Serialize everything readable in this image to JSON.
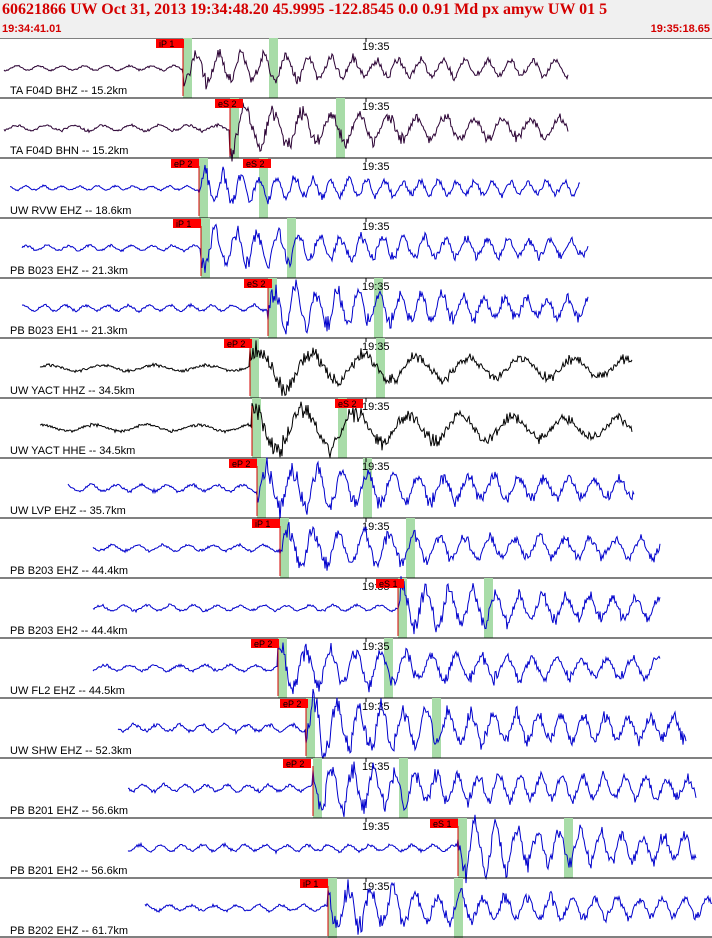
{
  "header": {
    "title": "60621866 UW Oct 31, 2013 19:34:48.20   45.9995 -122.8545  0.0 0.91 Md px amyw UW 01   5",
    "time_start": "19:34:41.01",
    "time_end": "19:35:18.65"
  },
  "time_marker_label": "19:35",
  "colors": {
    "pick_box": "#ff0000",
    "phase_band": "#a8dca8",
    "black_trace": "#000000",
    "blue_trace": "#0000cc",
    "purple_trace": "#2a0033",
    "header_text": "#d40000"
  },
  "channels": [
    {
      "label": "TA F04D BHZ -- 15.2km",
      "color": "purple",
      "start": 4,
      "end": 568,
      "onset": 183,
      "amp": 14,
      "freq": 0.28,
      "pick": "iP 1",
      "pickx": 156,
      "s_pick": "",
      "s_pickx": 0
    },
    {
      "label": "TA F04D BHN -- 15.2km",
      "color": "purple",
      "start": 4,
      "end": 568,
      "onset": 230,
      "amp": 18,
      "freq": 0.22,
      "pick": "eS 2",
      "pickx": 215,
      "s_pick": "",
      "s_pickx": 0
    },
    {
      "label": "UW RVW EHZ -- 18.6km",
      "color": "blue",
      "start": 10,
      "end": 580,
      "onset": 199,
      "amp": 12,
      "freq": 0.35,
      "pick": "eP 2",
      "pickx": 171,
      "s_pick": "eS 2",
      "s_pickx": 243
    },
    {
      "label": "PB B023 EHZ -- 21.3km",
      "color": "blue",
      "start": 22,
      "end": 588,
      "onset": 201,
      "amp": 16,
      "freq": 0.3,
      "pick": "iP 1",
      "pickx": 173,
      "s_pick": "",
      "s_pickx": 0
    },
    {
      "label": "PB B023 EH1 -- 21.3km",
      "color": "blue",
      "start": 22,
      "end": 588,
      "onset": 268,
      "amp": 18,
      "freq": 0.3,
      "pick": "eS 2",
      "pickx": 244,
      "s_pick": "",
      "s_pickx": 0
    },
    {
      "label": "UW YACT HHZ -- 34.5km",
      "color": "black",
      "start": 40,
      "end": 632,
      "onset": 250,
      "amp": 18,
      "freq": 0.12,
      "pick": "eP 2",
      "pickx": 224,
      "s_pick": "",
      "s_pickx": 0
    },
    {
      "label": "UW YACT HHE -- 34.5km",
      "color": "black",
      "start": 40,
      "end": 632,
      "onset": 252,
      "amp": 20,
      "freq": 0.12,
      "pick": "eS 2",
      "pickx": 335,
      "s_pick": "",
      "s_pickx": 0
    },
    {
      "label": "UW LVP EHZ -- 35.7km",
      "color": "blue",
      "start": 68,
      "end": 634,
      "onset": 257,
      "amp": 20,
      "freq": 0.25,
      "pick": "eP 2",
      "pickx": 229,
      "s_pick": "",
      "s_pickx": 0
    },
    {
      "label": "PB B203 EHZ -- 44.4km",
      "color": "blue",
      "start": 93,
      "end": 660,
      "onset": 280,
      "amp": 18,
      "freq": 0.25,
      "pick": "iP 1",
      "pickx": 252,
      "s_pick": "",
      "s_pickx": 0
    },
    {
      "label": "PB B203 EH2 -- 44.4km",
      "color": "blue",
      "start": 93,
      "end": 660,
      "onset": 398,
      "amp": 18,
      "freq": 0.27,
      "pick": "eS 1",
      "pickx": 376,
      "s_pick": "",
      "s_pickx": 0
    },
    {
      "label": "UW FL2 EHZ -- 44.5km",
      "color": "blue",
      "start": 93,
      "end": 660,
      "onset": 278,
      "amp": 18,
      "freq": 0.25,
      "pick": "eP 2",
      "pickx": 251,
      "s_pick": "",
      "s_pickx": 0
    },
    {
      "label": "UW SHW EHZ -- 52.3km",
      "color": "blue",
      "start": 118,
      "end": 686,
      "onset": 306,
      "amp": 22,
      "freq": 0.28,
      "pick": "eP 2",
      "pickx": 280,
      "s_pick": "",
      "s_pickx": 0
    },
    {
      "label": "PB B201 EHZ -- 56.6km",
      "color": "blue",
      "start": 128,
      "end": 696,
      "onset": 313,
      "amp": 20,
      "freq": 0.3,
      "pick": "eP 2",
      "pickx": 283,
      "s_pick": "",
      "s_pickx": 0
    },
    {
      "label": "PB B201 EH2 -- 56.6km",
      "color": "blue",
      "start": 128,
      "end": 696,
      "onset": 458,
      "amp": 20,
      "freq": 0.3,
      "pick": "eS 1",
      "pickx": 430,
      "s_pick": "",
      "s_pickx": 0
    },
    {
      "label": "PB B202 EHZ -- 61.7km",
      "color": "blue",
      "start": 145,
      "end": 712,
      "onset": 328,
      "amp": 18,
      "freq": 0.28,
      "pick": "iP 1",
      "pickx": 300,
      "s_pick": "",
      "s_pickx": 0
    }
  ]
}
